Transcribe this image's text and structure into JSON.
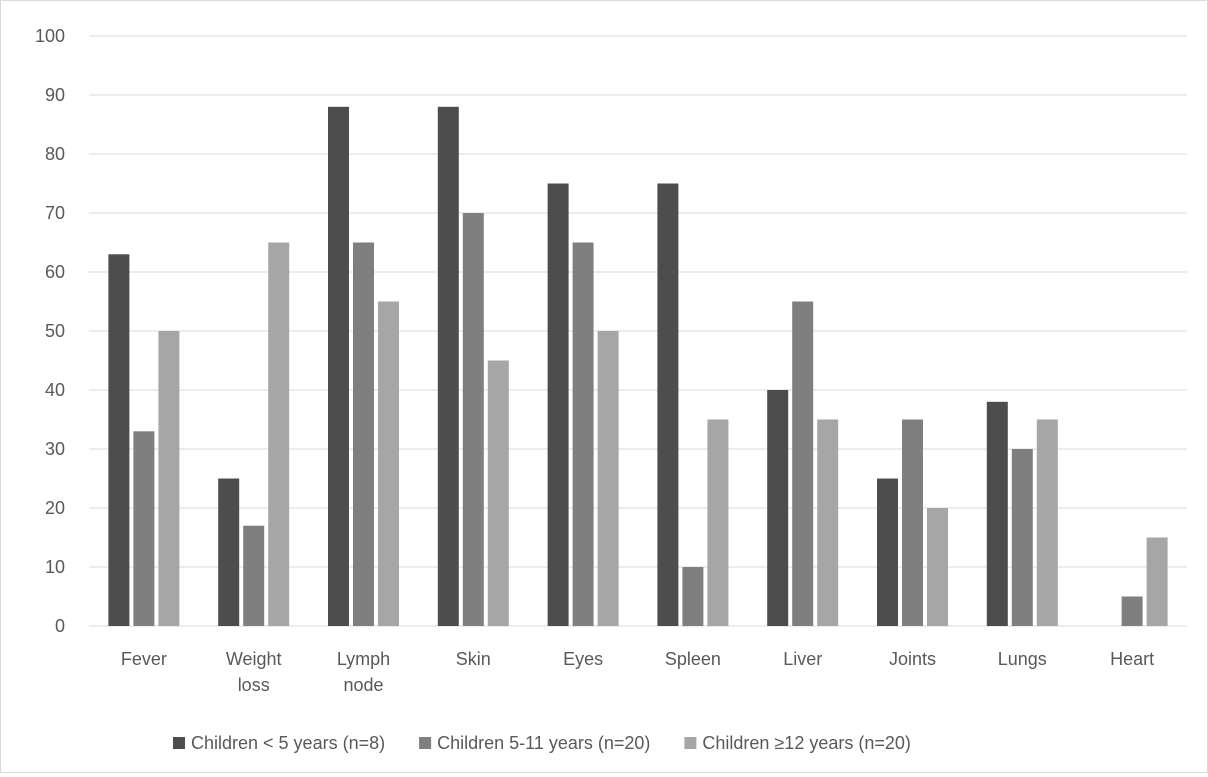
{
  "chart_data": {
    "type": "bar",
    "categories": [
      [
        "Fever"
      ],
      [
        "Weight",
        "loss"
      ],
      [
        "Lymph",
        "node"
      ],
      [
        "Skin"
      ],
      [
        "Eyes"
      ],
      [
        "Spleen"
      ],
      [
        "Liver"
      ],
      [
        "Joints"
      ],
      [
        "Lungs"
      ],
      [
        "Heart"
      ]
    ],
    "series": [
      {
        "name": "Children < 5 years (n=8)",
        "color": "#4d4d4d",
        "values": [
          63,
          25,
          88,
          88,
          75,
          75,
          40,
          25,
          38,
          0
        ]
      },
      {
        "name": "Children 5-11 years (n=20)",
        "color": "#7f7f7f",
        "values": [
          33,
          17,
          65,
          70,
          65,
          10,
          55,
          35,
          30,
          5
        ]
      },
      {
        "name": "Children ≥12 years (n=20)",
        "color": "#a6a6a6",
        "values": [
          50,
          65,
          55,
          45,
          50,
          35,
          35,
          20,
          35,
          15
        ]
      }
    ],
    "ylim": [
      0,
      100
    ],
    "yticks": [
      0,
      10,
      20,
      30,
      40,
      50,
      60,
      70,
      80,
      90,
      100
    ],
    "grid": true,
    "legend_position": "bottom",
    "title": "",
    "xlabel": "",
    "ylabel": ""
  }
}
